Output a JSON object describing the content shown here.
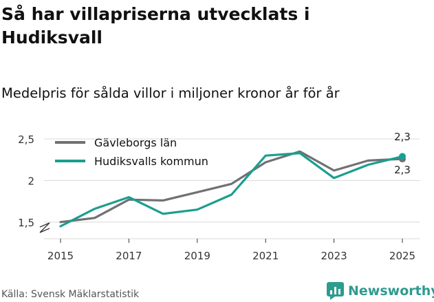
{
  "title": "Så har villapriserna utvecklats i Hudiksvall",
  "subtitle": "Medelpris för sålda villor i miljoner kronor år för år",
  "source": "Källa: Svensk Mäklarstatistik",
  "brand": {
    "name": "Newsworthy",
    "icon": "newsworthy-logo-icon",
    "color": "#2e9b8f"
  },
  "chart_data": {
    "type": "line",
    "x": [
      2015,
      2016,
      2017,
      2018,
      2019,
      2020,
      2021,
      2022,
      2023,
      2024,
      2025
    ],
    "x_ticks": [
      "2015",
      "2017",
      "2019",
      "2021",
      "2023",
      "2025"
    ],
    "y_ticks": [
      "1,5",
      "2",
      "2,5"
    ],
    "ylim": [
      1.3,
      2.55
    ],
    "axis_break": true,
    "grid": true,
    "legend_position": "top-left",
    "series": [
      {
        "name": "Gävleborgs län",
        "color": "#707075",
        "values": [
          1.5,
          1.55,
          1.77,
          1.76,
          1.86,
          1.96,
          2.22,
          2.35,
          2.12,
          2.24,
          2.26
        ],
        "end_label": "2,3"
      },
      {
        "name": "Hudiksvalls kommun",
        "color": "#1b9e8f",
        "values": [
          1.45,
          1.66,
          1.8,
          1.6,
          1.65,
          1.83,
          2.3,
          2.33,
          2.03,
          2.19,
          2.29
        ],
        "end_label": "2,3"
      }
    ]
  }
}
